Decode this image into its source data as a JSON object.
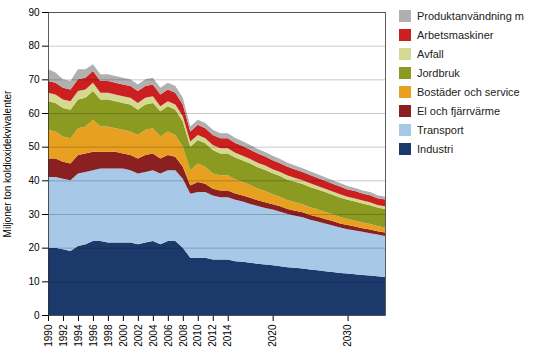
{
  "chart_data": {
    "type": "area",
    "stacked": true,
    "ylabel": "Miljoner ton koldioxidekvivalenter",
    "xlim": [
      1990,
      2035
    ],
    "xticks": [
      1990,
      1992,
      1994,
      1996,
      1998,
      2000,
      2002,
      2004,
      2006,
      2008,
      2010,
      2012,
      2014,
      2020,
      2030
    ],
    "ylim": [
      0,
      90
    ],
    "yticks": [
      0,
      10,
      20,
      30,
      40,
      50,
      60,
      70,
      80,
      90
    ],
    "grid": true,
    "legend": "right",
    "x": [
      1990,
      1991,
      1992,
      1993,
      1994,
      1995,
      1996,
      1997,
      1998,
      1999,
      2000,
      2001,
      2002,
      2003,
      2004,
      2005,
      2006,
      2007,
      2008,
      2009,
      2010,
      2011,
      2012,
      2013,
      2014,
      2015,
      2016,
      2017,
      2018,
      2019,
      2020,
      2021,
      2022,
      2023,
      2024,
      2025,
      2026,
      2027,
      2028,
      2029,
      2030,
      2031,
      2032,
      2033,
      2034,
      2035
    ],
    "series": [
      {
        "name": "Industri",
        "color": "#1b3a6b",
        "values": [
          20.0,
          20.0,
          19.5,
          19.0,
          20.5,
          21.0,
          22.0,
          22.0,
          21.5,
          21.5,
          21.5,
          21.5,
          21.0,
          21.5,
          22.0,
          21.0,
          22.0,
          22.0,
          20.0,
          17.0,
          17.0,
          17.0,
          16.5,
          16.5,
          16.5,
          16.0,
          15.8,
          15.5,
          15.2,
          15.0,
          14.8,
          14.5,
          14.2,
          14.0,
          13.8,
          13.5,
          13.3,
          13.0,
          12.8,
          12.5,
          12.3,
          12.1,
          11.9,
          11.7,
          11.5,
          11.3
        ]
      },
      {
        "name": "Transport",
        "color": "#a8c8e8",
        "values": [
          21.0,
          21.0,
          21.0,
          21.0,
          21.5,
          21.5,
          21.0,
          21.5,
          22.0,
          22.0,
          22.0,
          21.5,
          21.0,
          21.0,
          21.0,
          21.0,
          21.0,
          21.0,
          20.5,
          19.0,
          19.5,
          19.5,
          19.0,
          18.5,
          18.5,
          18.2,
          17.9,
          17.5,
          17.2,
          16.8,
          16.5,
          16.2,
          15.8,
          15.5,
          15.2,
          14.8,
          14.5,
          14.2,
          13.8,
          13.5,
          13.2,
          13.0,
          12.8,
          12.6,
          12.4,
          12.2
        ]
      },
      {
        "name": "El och fjärrvärme",
        "color": "#8b2020",
        "values": [
          5.5,
          5.5,
          5.0,
          5.0,
          5.5,
          5.5,
          5.5,
          5.0,
          5.0,
          5.0,
          4.5,
          4.5,
          4.5,
          5.0,
          5.0,
          4.5,
          4.5,
          4.0,
          3.5,
          2.5,
          3.0,
          2.5,
          2.0,
          2.0,
          2.0,
          1.9,
          1.8,
          1.8,
          1.7,
          1.7,
          1.6,
          1.6,
          1.5,
          1.5,
          1.5,
          1.4,
          1.4,
          1.3,
          1.3,
          1.2,
          1.2,
          1.2,
          1.1,
          1.1,
          1.0,
          1.0
        ]
      },
      {
        "name": "Bostäder och service",
        "color": "#e8a020",
        "values": [
          8.5,
          8.0,
          7.5,
          7.5,
          8.0,
          8.0,
          9.5,
          7.5,
          7.5,
          7.0,
          7.0,
          7.0,
          7.0,
          7.5,
          7.5,
          6.5,
          7.0,
          6.5,
          6.0,
          4.5,
          5.5,
          5.0,
          4.5,
          4.5,
          4.5,
          4.2,
          4.0,
          3.8,
          3.5,
          3.3,
          3.0,
          2.8,
          2.6,
          2.5,
          2.4,
          2.3,
          2.2,
          2.1,
          2.0,
          1.9,
          1.8,
          1.7,
          1.7,
          1.6,
          1.5,
          1.5
        ]
      },
      {
        "name": "Jordbruk",
        "color": "#8b9a20",
        "values": [
          8.5,
          8.5,
          8.5,
          8.5,
          8.5,
          8.5,
          8.5,
          8.0,
          8.0,
          8.0,
          8.0,
          8.0,
          7.5,
          7.5,
          7.5,
          7.5,
          7.5,
          7.5,
          7.5,
          7.0,
          7.0,
          7.0,
          7.0,
          6.5,
          6.5,
          6.5,
          6.4,
          6.4,
          6.3,
          6.3,
          6.2,
          6.2,
          6.1,
          6.1,
          6.0,
          6.0,
          5.9,
          5.9,
          5.8,
          5.8,
          5.7,
          5.7,
          5.6,
          5.6,
          5.5,
          5.5
        ]
      },
      {
        "name": "Avfall",
        "color": "#d4d890",
        "values": [
          2.5,
          2.5,
          2.5,
          2.5,
          2.5,
          2.5,
          2.5,
          2.0,
          2.0,
          2.0,
          2.0,
          2.0,
          2.0,
          2.0,
          2.0,
          1.5,
          1.5,
          1.5,
          1.5,
          1.5,
          1.5,
          1.5,
          1.5,
          1.5,
          1.5,
          1.4,
          1.4,
          1.3,
          1.3,
          1.3,
          1.2,
          1.2,
          1.2,
          1.1,
          1.1,
          1.1,
          1.0,
          1.0,
          1.0,
          1.0,
          0.9,
          0.9,
          0.9,
          0.9,
          0.8,
          0.8
        ]
      },
      {
        "name": "Arbetsmaskiner",
        "color": "#cc2020",
        "values": [
          3.5,
          3.5,
          3.5,
          3.5,
          3.5,
          3.5,
          3.5,
          3.5,
          3.5,
          3.5,
          3.5,
          3.5,
          3.5,
          3.5,
          3.5,
          3.5,
          3.5,
          3.5,
          3.5,
          3.0,
          3.0,
          3.0,
          3.0,
          3.0,
          3.0,
          2.9,
          2.9,
          2.8,
          2.8,
          2.7,
          2.7,
          2.6,
          2.6,
          2.5,
          2.5,
          2.5,
          2.4,
          2.4,
          2.3,
          2.3,
          2.2,
          2.2,
          2.1,
          2.1,
          2.0,
          2.0
        ]
      },
      {
        "name": "Produktanvändning m",
        "color": "#b0b0b0",
        "values": [
          3.5,
          3.0,
          2.5,
          2.5,
          3.0,
          2.5,
          2.0,
          2.0,
          2.0,
          2.0,
          2.0,
          2.0,
          2.0,
          2.0,
          2.0,
          2.0,
          2.0,
          2.0,
          2.0,
          1.5,
          1.5,
          1.5,
          1.5,
          1.5,
          1.5,
          1.5,
          1.4,
          1.4,
          1.3,
          1.3,
          1.3,
          1.2,
          1.2,
          1.2,
          1.1,
          1.1,
          1.1,
          1.0,
          1.0,
          1.0,
          1.0,
          0.9,
          0.9,
          0.9,
          0.9,
          0.8
        ]
      }
    ]
  }
}
